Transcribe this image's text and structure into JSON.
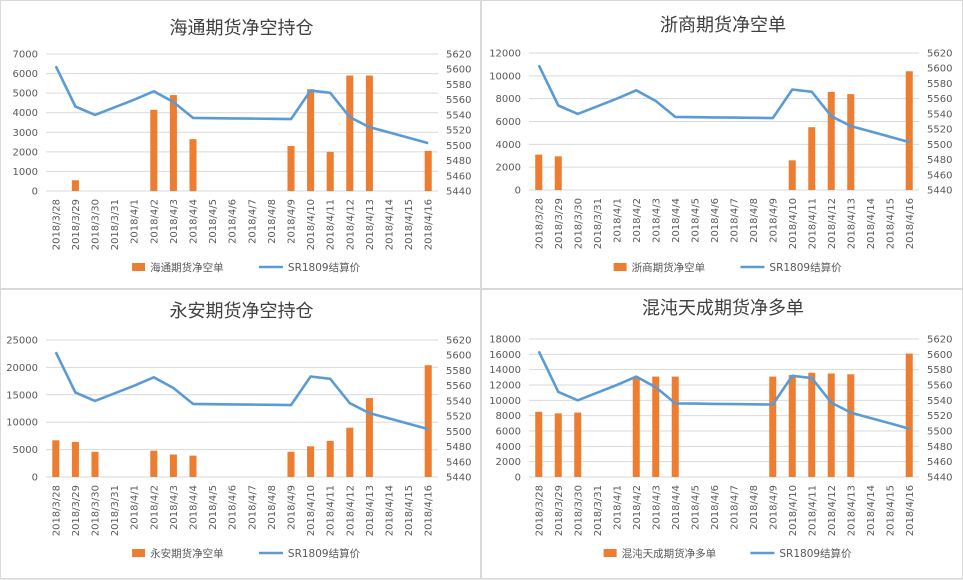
{
  "colors": {
    "bar": "#ED7D31",
    "line": "#5B9BD5",
    "grid": "#d9d9d9",
    "text": "#595959"
  },
  "chart_data": [
    {
      "type": "bar",
      "title": "海通期货净空持仓",
      "categories": [
        "2018/3/28",
        "2018/3/29",
        "2018/3/30",
        "2018/3/31",
        "2018/4/1",
        "2018/4/2",
        "2018/4/3",
        "2018/4/4",
        "2018/4/5",
        "2018/4/6",
        "2018/4/7",
        "2018/4/8",
        "2018/4/9",
        "2018/4/10",
        "2018/4/11",
        "2018/4/12",
        "2018/4/13",
        "2018/4/14",
        "2018/4/15",
        "2018/4/16"
      ],
      "series": [
        {
          "name": "海通期货净空单",
          "type": "bar",
          "axis": "left",
          "values": [
            null,
            550,
            null,
            null,
            null,
            4150,
            4900,
            2650,
            null,
            null,
            null,
            null,
            2300,
            5200,
            2000,
            5900,
            5900,
            null,
            null,
            2050
          ]
        },
        {
          "name": "SR1809结算价",
          "type": "line",
          "axis": "right",
          "values": [
            5604,
            5551,
            5540,
            5550,
            5560,
            5571,
            5557,
            5536,
            5535.7,
            5535.4,
            5535.1,
            5534.8,
            5534.5,
            5572,
            5569,
            5537,
            5524,
            5517,
            5510,
            5503
          ]
        }
      ],
      "y_left": {
        "min": 0,
        "max": 7000,
        "ticks": [
          0,
          1000,
          2000,
          3000,
          4000,
          5000,
          6000,
          7000
        ]
      },
      "y_right": {
        "min": 5440,
        "max": 5620,
        "ticks": [
          5440,
          5460,
          5480,
          5500,
          5520,
          5540,
          5560,
          5580,
          5600,
          5620
        ]
      },
      "legend": "bottom"
    },
    {
      "type": "bar",
      "title": "浙商期货净空单",
      "categories": [
        "2018/3/28",
        "2018/3/29",
        "2018/3/30",
        "2018/3/31",
        "2018/4/1",
        "2018/4/2",
        "2018/4/3",
        "2018/4/4",
        "2018/4/5",
        "2018/4/6",
        "2018/4/7",
        "2018/4/8",
        "2018/4/9",
        "2018/4/10",
        "2018/4/11",
        "2018/4/12",
        "2018/4/13",
        "2018/4/14",
        "2018/4/15",
        "2018/4/16"
      ],
      "series": [
        {
          "name": "浙商期货净空单",
          "type": "bar",
          "axis": "left",
          "values": [
            3100,
            2950,
            null,
            null,
            null,
            null,
            null,
            null,
            null,
            null,
            null,
            null,
            null,
            2600,
            5500,
            8600,
            8400,
            null,
            null,
            10400
          ]
        },
        {
          "name": "SR1809结算价",
          "type": "line",
          "axis": "right",
          "values": [
            5604,
            5551,
            5540,
            5550,
            5560,
            5571,
            5557,
            5536,
            5535.7,
            5535.4,
            5535.1,
            5534.8,
            5534.5,
            5572,
            5569,
            5537,
            5524,
            5517,
            5510,
            5503
          ]
        }
      ],
      "y_left": {
        "min": 0,
        "max": 12000,
        "ticks": [
          0,
          2000,
          4000,
          6000,
          8000,
          10000,
          12000
        ]
      },
      "y_right": {
        "min": 5440,
        "max": 5620,
        "ticks": [
          5440,
          5460,
          5480,
          5500,
          5520,
          5540,
          5560,
          5580,
          5600,
          5620
        ]
      },
      "legend": "bottom"
    },
    {
      "type": "bar",
      "title": "永安期货净空持仓",
      "categories": [
        "2018/3/28",
        "2018/3/29",
        "2018/3/30",
        "2018/3/31",
        "2018/4/1",
        "2018/4/2",
        "2018/4/3",
        "2018/4/4",
        "2018/4/5",
        "2018/4/6",
        "2018/4/7",
        "2018/4/8",
        "2018/4/9",
        "2018/4/10",
        "2018/4/11",
        "2018/4/12",
        "2018/4/13",
        "2018/4/14",
        "2018/4/15",
        "2018/4/16"
      ],
      "series": [
        {
          "name": "永安期货净空单",
          "type": "bar",
          "axis": "left",
          "values": [
            6700,
            6400,
            4600,
            null,
            null,
            4800,
            4100,
            3900,
            null,
            null,
            null,
            null,
            4600,
            5600,
            6600,
            9000,
            14400,
            null,
            null,
            20400
          ]
        },
        {
          "name": "SR1809结算价",
          "type": "line",
          "axis": "right",
          "values": [
            5604,
            5551,
            5540,
            5550,
            5560,
            5571,
            5557,
            5536,
            5535.7,
            5535.4,
            5535.1,
            5534.8,
            5534.5,
            5572,
            5569,
            5537,
            5524,
            5517,
            5510,
            5503
          ]
        }
      ],
      "y_left": {
        "min": 0,
        "max": 25000,
        "ticks": [
          0,
          5000,
          10000,
          15000,
          20000,
          25000
        ]
      },
      "y_right": {
        "min": 5440,
        "max": 5620,
        "ticks": [
          5440,
          5460,
          5480,
          5500,
          5520,
          5540,
          5560,
          5580,
          5600,
          5620
        ]
      },
      "legend": "bottom"
    },
    {
      "type": "bar",
      "title": "混沌天成期货净多单",
      "categories": [
        "2018/3/28",
        "2018/3/29",
        "2018/3/30",
        "2018/3/31",
        "2018/4/1",
        "2018/4/2",
        "2018/4/3",
        "2018/4/4",
        "2018/4/5",
        "2018/4/6",
        "2018/4/7",
        "2018/4/8",
        "2018/4/9",
        "2018/4/10",
        "2018/4/11",
        "2018/4/12",
        "2018/4/13",
        "2018/4/14",
        "2018/4/15",
        "2018/4/16"
      ],
      "series": [
        {
          "name": "混沌天成期货净多单",
          "type": "bar",
          "axis": "left",
          "values": [
            8500,
            8300,
            8400,
            null,
            null,
            13000,
            13100,
            13100,
            null,
            null,
            null,
            null,
            13100,
            13300,
            13600,
            13500,
            13400,
            null,
            null,
            16100
          ]
        },
        {
          "name": "SR1809结算价",
          "type": "line",
          "axis": "right",
          "values": [
            5604,
            5551,
            5540,
            5550,
            5560,
            5571,
            5557,
            5536,
            5535.7,
            5535.4,
            5535.1,
            5534.8,
            5534.5,
            5572,
            5569,
            5537,
            5524,
            5517,
            5510,
            5503
          ]
        }
      ],
      "y_left": {
        "min": 0,
        "max": 18000,
        "ticks": [
          0,
          2000,
          4000,
          6000,
          8000,
          10000,
          12000,
          14000,
          16000,
          18000
        ]
      },
      "y_right": {
        "min": 5440,
        "max": 5620,
        "ticks": [
          5440,
          5460,
          5480,
          5500,
          5520,
          5540,
          5560,
          5580,
          5600,
          5620
        ]
      },
      "legend": "bottom"
    }
  ]
}
